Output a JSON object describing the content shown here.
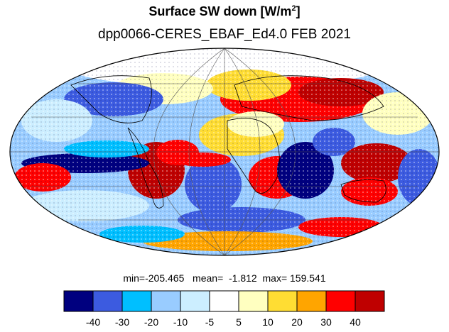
{
  "title": {
    "main": "Surface SW down [W/m",
    "sup": "2",
    "close": "]"
  },
  "subtitle": "dpp0066-CERES_EBAF_Ed4.0  FEB 2021",
  "stats": "min=-205.465   mean=  -1.812  max= 159.541",
  "colorbar": {
    "colors": [
      "#00007f",
      "#3c5be0",
      "#00bfff",
      "#99ccff",
      "#cceeff",
      "#ffffff",
      "#ffffc0",
      "#ffdd33",
      "#ffa500",
      "#ff0000",
      "#bf0000"
    ],
    "labels": [
      "-40",
      "-30",
      "-20",
      "-10",
      "-5",
      "5",
      "10",
      "20",
      "30",
      "40"
    ]
  },
  "map": {
    "projection": "Mollweide",
    "graticule": true
  }
}
